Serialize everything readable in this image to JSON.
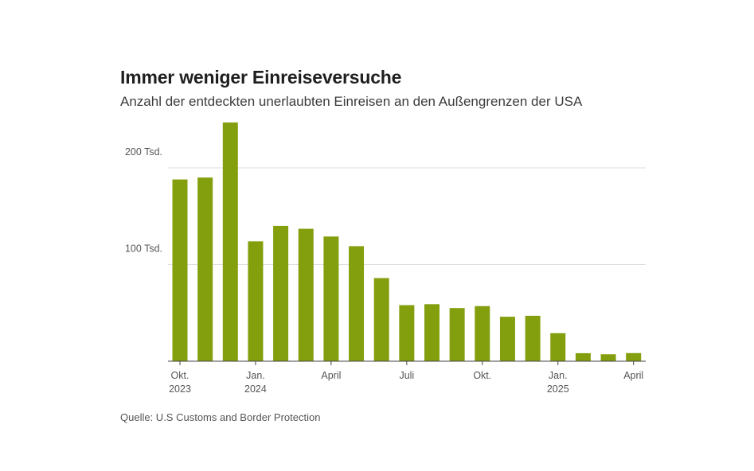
{
  "title": "Immer weniger Einreiseversuche",
  "subtitle": "Anzahl der entdeckten unerlaubten Einreisen an den Außengrenzen der USA",
  "source": "Quelle: U.S Customs and Border Protection",
  "colors": {
    "bar": "#849f0e",
    "grid": "#dddddd",
    "axis": "#444444"
  },
  "chart_data": {
    "type": "bar",
    "x": [
      "2023-10",
      "2023-11",
      "2023-12",
      "2024-01",
      "2024-02",
      "2024-03",
      "2024-04",
      "2024-05",
      "2024-06",
      "2024-07",
      "2024-08",
      "2024-09",
      "2024-10",
      "2024-11",
      "2024-12",
      "2025-01",
      "2025-02",
      "2025-03",
      "2025-04"
    ],
    "values": [
      188000,
      190000,
      247000,
      124000,
      140000,
      137000,
      129000,
      119000,
      86000,
      58000,
      59000,
      55000,
      57000,
      46000,
      47000,
      29000,
      8300,
      7200,
      8400
    ],
    "ylim": [
      0,
      250000
    ],
    "grid": true,
    "y_ticks": [
      {
        "value": 100000,
        "label": "100 Tsd."
      },
      {
        "value": 200000,
        "label": "200 Tsd."
      }
    ],
    "x_ticks": [
      {
        "index": 0,
        "label": "Okt.",
        "sublabel": "2023"
      },
      {
        "index": 3,
        "label": "Jan.",
        "sublabel": "2024"
      },
      {
        "index": 6,
        "label": "April",
        "sublabel": ""
      },
      {
        "index": 9,
        "label": "Juli",
        "sublabel": ""
      },
      {
        "index": 12,
        "label": "Okt.",
        "sublabel": ""
      },
      {
        "index": 15,
        "label": "Jan.",
        "sublabel": "2025"
      },
      {
        "index": 18,
        "label": "April",
        "sublabel": ""
      }
    ]
  }
}
